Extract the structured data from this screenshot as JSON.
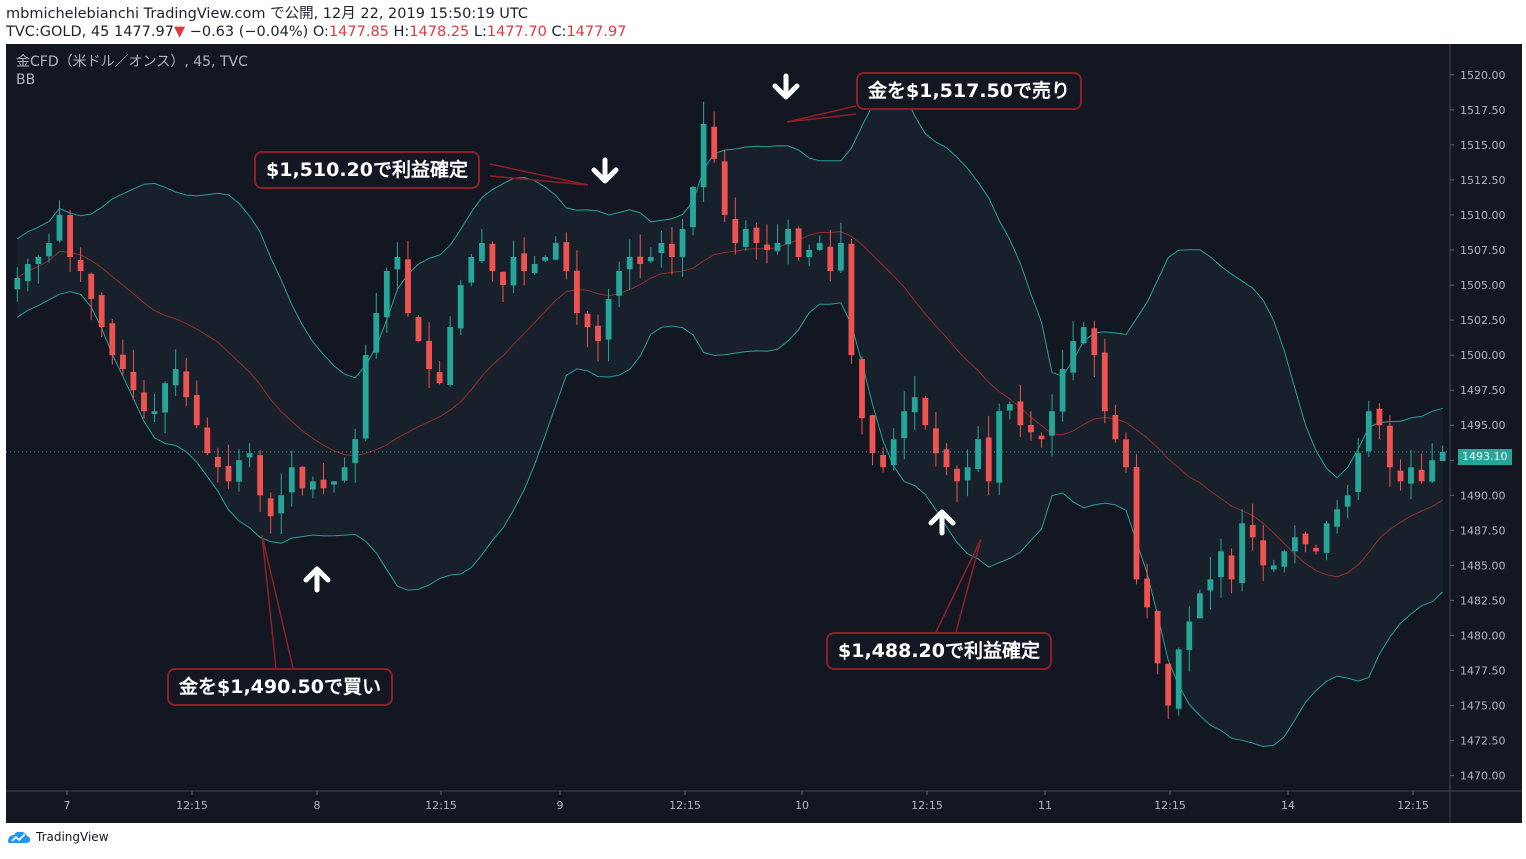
{
  "header": {
    "line1": "mbmichelebianchi TradingView.com で公開, 12月 22, 2019 15:50:19 UTC",
    "symbol": "TVC:GOLD, 45",
    "last": "1477.97",
    "change": "−0.63 (−0.04%)",
    "o_label": "O:",
    "o": "1477.85",
    "h_label": "H:",
    "h": "1478.25",
    "l_label": "L:",
    "l": "1477.70",
    "c_label": "C:",
    "c": "1477.97"
  },
  "legend": {
    "title": "金CFD（米ドル／オンス）, 45, TVC",
    "indicator": "BB"
  },
  "price_tag": "1493.10",
  "footer": {
    "brand": "TradingView"
  },
  "callouts": {
    "sell": "金を$1,517.50で売り",
    "tp1": "$1,510.20で利益確定",
    "buy": "金を$1,490.50で買い",
    "tp2": "$1,488.20で利益確定"
  },
  "colors": {
    "up": "#26a69a",
    "down": "#ef5350",
    "band": "#2a9d9a",
    "basis": "#8f2d2d",
    "background": "#131722"
  },
  "chart_data": {
    "type": "candlestick",
    "indicator": "Bollinger Bands",
    "y_ticks": [
      "1520.00",
      "1517.50",
      "1515.00",
      "1512.50",
      "1510.00",
      "1507.50",
      "1505.00",
      "1502.50",
      "1500.00",
      "1497.50",
      "1495.00",
      "1492.50",
      "1490.00",
      "1487.50",
      "1485.00",
      "1482.50",
      "1480.00",
      "1477.50",
      "1475.00",
      "1472.50",
      "1470.00"
    ],
    "ylim": [
      1468.9,
      1522.2
    ],
    "x_ticks": [
      "7",
      "12:15",
      "8",
      "12:15",
      "9",
      "12:15",
      "10",
      "12:15",
      "11",
      "12:15",
      "14",
      "12:15"
    ],
    "close_path": [
      1505.5,
      1506.5,
      1507,
      1508,
      1510,
      1507,
      1506,
      1504,
      1502,
      1500,
      1499,
      1497.5,
      1496,
      1496,
      1498,
      1499,
      1497,
      1495,
      1493,
      1492,
      1491,
      1492.5,
      1493,
      1490,
      1488.5,
      1490,
      1492,
      1490.5,
      1491,
      1490.5,
      1491,
      1492,
      1494,
      1500,
      1503,
      1506,
      1507,
      1503,
      1501,
      1499,
      1498,
      1502,
      1505,
      1507,
      1508,
      1506,
      1505,
      1507,
      1506,
      1506.5,
      1507,
      1508,
      1506,
      1503,
      1502,
      1501,
      1504,
      1506,
      1507,
      1506.5,
      1507,
      1508,
      1507,
      1509,
      1512,
      1516.5,
      1514,
      1510,
      1508,
      1509,
      1508,
      1507.5,
      1508,
      1509,
      1507,
      1507.5,
      1508,
      1506,
      1508,
      1500,
      1495.5,
      1493,
      1492,
      1494,
      1496,
      1497,
      1495,
      1493,
      1492,
      1491,
      1492,
      1494,
      1491,
      1496,
      1496.5,
      1495,
      1494.5,
      1494,
      1496,
      1499,
      1501,
      1502,
      1500,
      1496,
      1494,
      1492,
      1484,
      1482,
      1478,
      1475,
      1479,
      1481,
      1483,
      1484,
      1486,
      1484,
      1488,
      1487,
      1485,
      1485,
      1486,
      1487,
      1486.5,
      1486,
      1488,
      1489,
      1490,
      1493,
      1496,
      1495,
      1492,
      1491,
      1492,
      1491,
      1492.5,
      1493.1
    ],
    "callouts": [
      {
        "text": "金を$1,517.50で売り",
        "type": "sell"
      },
      {
        "text": "$1,510.20で利益確定",
        "type": "take-profit"
      },
      {
        "text": "金を$1,490.50で買い",
        "type": "buy"
      },
      {
        "text": "$1,488.20で利益確定",
        "type": "take-profit"
      }
    ]
  }
}
